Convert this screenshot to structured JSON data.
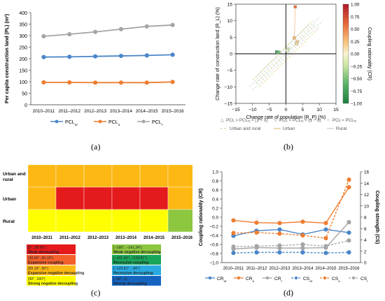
{
  "panel_labels": [
    "(a)",
    "(b)",
    "(c)",
    "(d)"
  ],
  "chart_data": [
    {
      "type": "line",
      "categories": [
        "2010–2011",
        "2011–2012",
        "2012–2013",
        "2013–2014",
        "2014–2015",
        "2015–2016"
      ],
      "ylabel": "Per capita construction land (PL) (m²)",
      "ylim": [
        0,
        400
      ],
      "yticks": [
        "0",
        "50",
        "100",
        "150",
        "200",
        "250",
        "300",
        "350",
        "400"
      ],
      "series": [
        {
          "name": "PCL_ur",
          "legend_main": "PCL",
          "legend_sub": "ur",
          "color": "#4a86c9",
          "values": [
            207,
            208,
            210,
            212,
            214,
            217
          ]
        },
        {
          "name": "PCL_u",
          "legend_main": "PCL",
          "legend_sub": "u",
          "color": "#ed7d31",
          "values": [
            97,
            97,
            96,
            96,
            96,
            99
          ]
        },
        {
          "name": "PCL_r",
          "legend_main": "PCL",
          "legend_sub": "r",
          "color": "#a5a5a5",
          "values": [
            297,
            306,
            316,
            328,
            340,
            346
          ]
        }
      ]
    },
    {
      "type": "scatter",
      "xlabel": "Change rate of population (R_P) (%)",
      "ylabel": "Change rate of construction land (R_L) (%)",
      "colorbar_label": "Coupling rationality (CR)",
      "xlim": [
        -15,
        15
      ],
      "ylim": [
        -15,
        15
      ],
      "xticks": [
        "−15",
        "−10",
        "−5",
        "0",
        "5",
        "10",
        "15"
      ],
      "yticks": [
        "−15",
        "−10",
        "−5",
        "0",
        "5",
        "10",
        "15"
      ],
      "colorbar_ticks": [
        "1.00",
        "0.75",
        "0.50",
        "0.25",
        "0.00",
        "−0.25",
        "−0.50",
        "−0.75",
        "−1.00"
      ],
      "legend": [
        "PCL > PCLᵣᵧ × (1 + δ)",
        "PCL < PCLᵣᵧ × (1 − δ)",
        "PCL ≈ PCLᵣᵧ",
        "Urban and rural",
        "Urban",
        "Rural"
      ],
      "points": [
        {
          "x": 2.8,
          "y": 14.2,
          "group": "Urban",
          "color": "#e8733a"
        },
        {
          "x": 2.5,
          "y": 4.8,
          "group": "Urban",
          "color": "#f3b36a"
        },
        {
          "x": 3.4,
          "y": 3.6,
          "group": "Urban",
          "color": "#f0c886"
        },
        {
          "x": 3.1,
          "y": 3.0,
          "group": "Urban",
          "color": "#eed6a3"
        },
        {
          "x": -2.8,
          "y": 0.6,
          "group": "Rural",
          "color": "#3f9e5a"
        },
        {
          "x": -2.4,
          "y": 0.4,
          "group": "Rural",
          "color": "#58ae6a"
        },
        {
          "x": -2.1,
          "y": 0.5,
          "group": "Rural",
          "color": "#6fbd7a"
        },
        {
          "x": 0.3,
          "y": 1.1,
          "group": "Urban and rural",
          "color": "#c9e0a8"
        },
        {
          "x": 0.7,
          "y": 1.4,
          "group": "Urban and rural",
          "color": "#d6e8b8"
        },
        {
          "x": 0.5,
          "y": 0.9,
          "group": "Urban and rural",
          "color": "#e3efc9"
        }
      ]
    },
    {
      "type": "heatmap",
      "rows": [
        "Urban and rural",
        "Urban",
        "Rural"
      ],
      "columns": [
        "2010–2011",
        "2011–2012",
        "2012–2013",
        "2013–2014",
        "2014–2015",
        "2015–2016"
      ],
      "cells": [
        [
          "Expansive negative decoupling",
          "Expansive negative decoupling",
          "Expansive negative decoupling",
          "Expansive negative decoupling",
          "Expansive negative decoupling",
          "Expansive negative decoupling"
        ],
        [
          "Expansive negative decoupling",
          "Weak decoupling",
          "Weak decoupling",
          "Weak decoupling",
          "Weak decoupling",
          "Expansive negative decoupling"
        ],
        [
          "Strong negative decoupling",
          "Strong negative decoupling",
          "Strong negative decoupling",
          "Strong negative decoupling",
          "Strong negative decoupling",
          "Weak negative decoupling"
        ]
      ],
      "legend": [
        {
          "range": "[0°, 38.66°)",
          "name": "Weak decoupling",
          "color": "#e41a1c"
        },
        {
          "range": "[38.66°, 50.19°)",
          "name": "Expansive coupling",
          "color": "#f4602c"
        },
        {
          "range": "[50.19°, 90°)",
          "name": "Expansive negative decoupling",
          "color": "#fdb813"
        },
        {
          "range": "[90°, 180°)",
          "name": "Strong negative decoupling",
          "color": "#ffff00"
        },
        {
          "range": "[−180°, −141.34°)",
          "name": "Weak negative decoupling",
          "color": "#8dc63f"
        },
        {
          "range": "[−141.34°, −129.81°)",
          "name": "Recessive coupling",
          "color": "#1aa65a"
        },
        {
          "range": "[−129.81°, −90°)",
          "name": "Recessive decoupling",
          "color": "#29abe2"
        },
        {
          "range": "[−90°, 0)",
          "name": "Strong decoupling",
          "color": "#1565c0"
        }
      ]
    },
    {
      "type": "line",
      "categories": [
        "2010–2011",
        "2011–2012",
        "2012–2013",
        "2013–2014",
        "2014–2015",
        "2015–2016"
      ],
      "ylabel_left": "Coupling rationality (CR)",
      "ylabel_right": "Coupling strength (CS)",
      "ylim_left": [
        -1,
        1
      ],
      "ylim_right": [
        0,
        16
      ],
      "yticks_left": [
        "1.0",
        "0.8",
        "0.6",
        "0.4",
        "0.2",
        "0.0",
        "−0.2",
        "−0.4",
        "−0.6",
        "−0.8",
        "−1.0"
      ],
      "yticks_right": [
        "16",
        "14",
        "12",
        "10",
        "8",
        "6",
        "4",
        "2",
        "0"
      ],
      "series": [
        {
          "name": "CR_ur",
          "legend_main": "CR",
          "legend_sub": "ur",
          "axis": "left",
          "dashed": false,
          "color": "#4a86c9",
          "values": [
            -0.41,
            -0.3,
            -0.27,
            -0.38,
            -0.27,
            -0.34
          ]
        },
        {
          "name": "CR_u",
          "legend_main": "CR",
          "legend_sub": "u",
          "axis": "left",
          "dashed": false,
          "color": "#ed7d31",
          "values": [
            -0.07,
            -0.12,
            -0.13,
            -0.1,
            -0.13,
            0.66
          ]
        },
        {
          "name": "CR_r",
          "legend_main": "CR",
          "legend_sub": "r",
          "axis": "left",
          "dashed": false,
          "color": "#a5a5a5",
          "values": [
            -0.7,
            -0.67,
            -0.68,
            -0.68,
            -0.67,
            -0.11
          ]
        },
        {
          "name": "CS_ur",
          "legend_main": "CS",
          "legend_sub": "ur",
          "axis": "right",
          "dashed": true,
          "color": "#4a86c9",
          "values": [
            1.7,
            1.8,
            1.8,
            1.8,
            1.7,
            1.8
          ]
        },
        {
          "name": "CS_u",
          "legend_main": "CS",
          "legend_sub": "u",
          "axis": "right",
          "dashed": true,
          "color": "#ed7d31",
          "values": [
            5.2,
            5.3,
            5.1,
            4.8,
            4.3,
            14.6
          ]
        },
        {
          "name": "CS_r",
          "legend_main": "CS",
          "legend_sub": "r",
          "axis": "right",
          "dashed": true,
          "color": "#a5a5a5",
          "values": [
            2.8,
            2.9,
            3.0,
            3.2,
            2.9,
            3.9
          ]
        }
      ]
    }
  ]
}
